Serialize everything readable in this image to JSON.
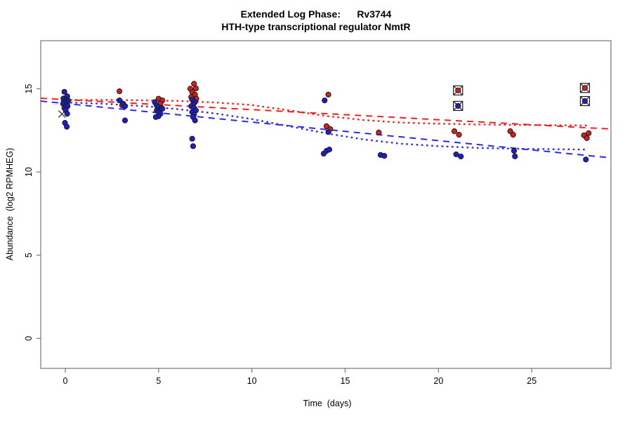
{
  "chart_data": {
    "type": "scatter",
    "title": "Extended Log Phase:      Rv3744",
    "subtitle": "HTH-type transcriptional regulator NmtR",
    "xlabel": "Time  (days)",
    "ylabel": "Abundance  (log2 RPMHEG)",
    "xlim": [
      -1.3,
      29.2
    ],
    "ylim": [
      -1.8,
      17.9
    ],
    "grid": false,
    "x_ticks": [
      0,
      5,
      10,
      15,
      20,
      25
    ],
    "y_ticks": [
      0,
      5,
      10,
      15
    ],
    "colors": {
      "point_red": "#d41f1f",
      "point_blue": "#1e1ecb",
      "line_red": "#ff1a1a",
      "line_blue": "#2929f0",
      "axis": "#7f7f7f",
      "marker_stroke": "#1a1a1a"
    },
    "series": [
      {
        "name": "red-condition",
        "color": "#d41f1f",
        "points": [
          [
            2.9,
            14.85
          ],
          [
            3.05,
            14.0
          ],
          [
            5.0,
            14.4
          ],
          [
            5.2,
            14.3
          ],
          [
            5.1,
            14.1
          ],
          [
            6.9,
            15.3
          ],
          [
            6.7,
            15.0
          ],
          [
            7.0,
            15.02
          ],
          [
            6.8,
            14.8
          ],
          [
            6.95,
            14.65
          ],
          [
            6.75,
            14.5
          ],
          [
            7.02,
            14.4
          ],
          [
            6.85,
            14.3
          ],
          [
            14.1,
            14.65
          ],
          [
            14.0,
            12.75
          ],
          [
            14.2,
            12.58
          ],
          [
            16.8,
            12.37
          ],
          [
            20.85,
            12.45
          ],
          [
            21.1,
            12.24
          ],
          [
            23.85,
            12.45
          ],
          [
            24.0,
            12.24
          ],
          [
            27.8,
            12.2
          ],
          [
            28.05,
            12.33
          ],
          [
            27.95,
            12.03
          ]
        ]
      },
      {
        "name": "blue-condition",
        "color": "#1e1ecb",
        "points": [
          [
            -0.05,
            14.82
          ],
          [
            0.1,
            14.55
          ],
          [
            -0.1,
            14.42
          ],
          [
            0.05,
            14.35
          ],
          [
            0.15,
            14.3
          ],
          [
            -0.08,
            14.28
          ],
          [
            0.0,
            14.2
          ],
          [
            0.1,
            14.15
          ],
          [
            -0.12,
            14.1
          ],
          [
            0.05,
            14.02
          ],
          [
            0.12,
            13.95
          ],
          [
            -0.05,
            13.85
          ],
          [
            0.02,
            13.72
          ],
          [
            0.1,
            13.5
          ],
          [
            -0.02,
            12.95
          ],
          [
            0.08,
            12.72
          ],
          [
            2.9,
            14.3
          ],
          [
            3.1,
            14.1
          ],
          [
            3.2,
            13.95
          ],
          [
            3.2,
            13.1
          ],
          [
            4.8,
            14.2
          ],
          [
            4.9,
            14.0
          ],
          [
            5.0,
            13.9
          ],
          [
            5.15,
            13.85
          ],
          [
            5.2,
            13.8
          ],
          [
            4.9,
            13.7
          ],
          [
            5.0,
            13.6
          ],
          [
            5.1,
            13.5
          ],
          [
            5.0,
            13.35
          ],
          [
            4.85,
            13.3
          ],
          [
            6.8,
            14.35
          ],
          [
            6.95,
            14.2
          ],
          [
            6.85,
            14.05
          ],
          [
            6.75,
            13.95
          ],
          [
            6.9,
            13.85
          ],
          [
            7.0,
            13.7
          ],
          [
            6.8,
            13.6
          ],
          [
            6.9,
            13.45
          ],
          [
            6.85,
            13.3
          ],
          [
            6.95,
            13.1
          ],
          [
            6.8,
            12.0
          ],
          [
            6.85,
            11.55
          ],
          [
            13.9,
            14.3
          ],
          [
            14.1,
            12.4
          ],
          [
            13.85,
            11.1
          ],
          [
            14.0,
            11.27
          ],
          [
            14.15,
            11.35
          ],
          [
            16.9,
            11.02
          ],
          [
            17.1,
            10.97
          ],
          [
            20.95,
            11.06
          ],
          [
            21.2,
            10.93
          ],
          [
            24.05,
            11.27
          ],
          [
            24.1,
            10.94
          ],
          [
            27.9,
            10.75
          ]
        ]
      }
    ],
    "flagged_points": [
      {
        "t": 21.05,
        "v": 14.9,
        "series": "red-condition"
      },
      {
        "t": 21.05,
        "v": 13.97,
        "series": "blue-condition"
      },
      {
        "t": 27.85,
        "v": 15.05,
        "series": "red-condition"
      },
      {
        "t": 27.85,
        "v": 14.26,
        "series": "blue-condition"
      }
    ],
    "outlier_x_marker": {
      "t": -0.18,
      "v": 13.48
    },
    "trend_lines": [
      {
        "name": "red-linear-fit",
        "style": "longdash",
        "color": "#ff1a1a",
        "endpoints": [
          [
            -1.32,
            14.43
          ],
          [
            29.25,
            12.58
          ]
        ]
      },
      {
        "name": "blue-linear-fit",
        "style": "longdash",
        "color": "#2929f0",
        "endpoints": [
          [
            -1.32,
            14.26
          ],
          [
            29.25,
            10.85
          ]
        ]
      },
      {
        "name": "red-loess-fit",
        "style": "dotted",
        "color": "#ff1a1a",
        "points": [
          [
            0,
            14.32
          ],
          [
            2,
            14.33
          ],
          [
            4,
            14.31
          ],
          [
            6,
            14.27
          ],
          [
            8,
            14.18
          ],
          [
            10,
            14.02
          ],
          [
            12,
            13.7
          ],
          [
            14,
            13.36
          ],
          [
            16,
            13.12
          ],
          [
            18,
            12.97
          ],
          [
            20,
            12.9
          ],
          [
            22,
            12.86
          ],
          [
            24,
            12.83
          ],
          [
            26,
            12.81
          ],
          [
            28,
            12.79
          ]
        ]
      },
      {
        "name": "blue-loess-fit",
        "style": "dotted",
        "color": "#2929f0",
        "points": [
          [
            0,
            14.18
          ],
          [
            2,
            14.1
          ],
          [
            4,
            13.97
          ],
          [
            6,
            13.78
          ],
          [
            8,
            13.52
          ],
          [
            10,
            13.18
          ],
          [
            12,
            12.75
          ],
          [
            14,
            12.32
          ],
          [
            16,
            11.95
          ],
          [
            18,
            11.7
          ],
          [
            20,
            11.55
          ],
          [
            22,
            11.45
          ],
          [
            24,
            11.4
          ],
          [
            26,
            11.37
          ],
          [
            28,
            11.35
          ]
        ]
      }
    ]
  }
}
